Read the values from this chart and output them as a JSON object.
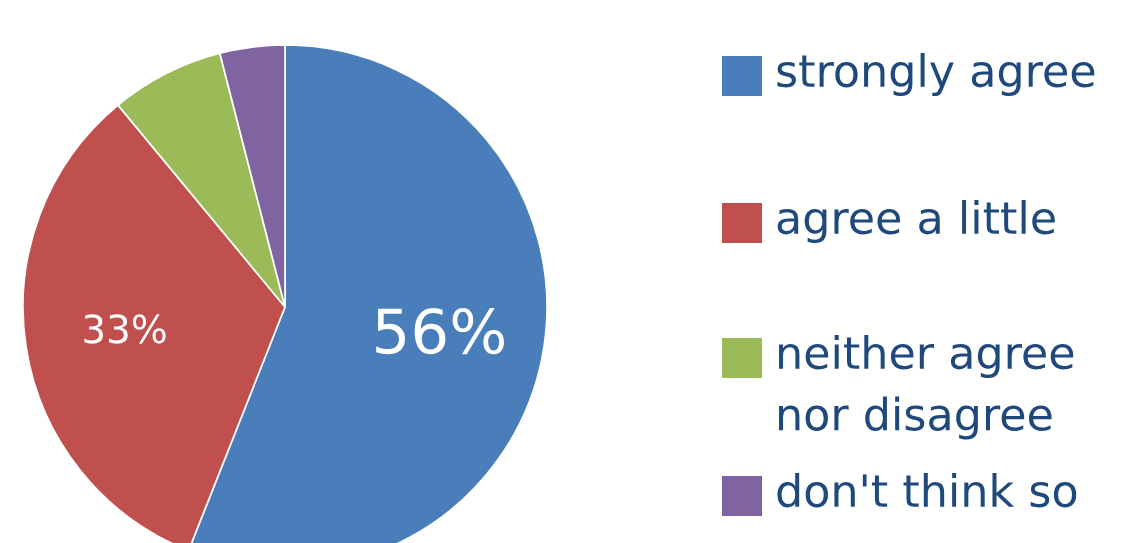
{
  "chart_data": {
    "type": "pie",
    "categories": [
      "strongly agree",
      "agree a little",
      "neither agree nor disagree",
      "don't think so"
    ],
    "values": [
      56,
      33,
      7,
      4
    ],
    "colors": [
      "#4a7ebb",
      "#c0504d",
      "#9bbb59",
      "#8064a2"
    ],
    "value_labels": [
      "56%",
      "33%",
      null,
      null
    ],
    "legend": "right"
  }
}
